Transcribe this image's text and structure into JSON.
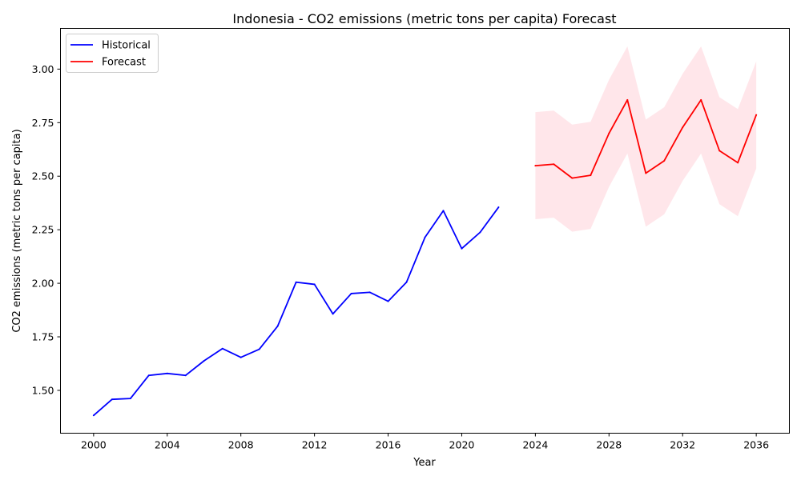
{
  "chart_data": {
    "type": "line",
    "title": "Indonesia - CO2 emissions (metric tons per capita) Forecast",
    "xlabel": "Year",
    "ylabel": "CO2 emissions (metric tons per capita)",
    "xlim": [
      1998.2,
      2037.8
    ],
    "ylim": [
      1.3,
      3.19
    ],
    "x_ticks": [
      2000,
      2004,
      2008,
      2012,
      2016,
      2020,
      2024,
      2028,
      2032,
      2036
    ],
    "y_ticks": [
      1.5,
      1.75,
      2.0,
      2.25,
      2.5,
      2.75,
      3.0
    ],
    "y_tick_labels": [
      "1.50",
      "1.75",
      "2.00",
      "2.25",
      "2.50",
      "2.75",
      "3.00"
    ],
    "legend_position": "top-left",
    "grid": false,
    "series": [
      {
        "name": "Historical",
        "color": "#0000ff",
        "x": [
          2000,
          2001,
          2002,
          2003,
          2004,
          2005,
          2006,
          2007,
          2008,
          2009,
          2010,
          2011,
          2012,
          2013,
          2014,
          2015,
          2016,
          2017,
          2018,
          2019,
          2020,
          2021,
          2022
        ],
        "y": [
          1.383,
          1.458,
          1.462,
          1.57,
          1.579,
          1.57,
          1.638,
          1.695,
          1.654,
          1.692,
          1.8,
          2.005,
          1.995,
          1.857,
          1.952,
          1.958,
          1.916,
          2.005,
          2.214,
          2.339,
          2.162,
          2.238,
          2.355
        ]
      },
      {
        "name": "Forecast",
        "color": "#ff0000",
        "x": [
          2024,
          2025,
          2026,
          2027,
          2028,
          2029,
          2030,
          2031,
          2032,
          2033,
          2034,
          2035,
          2036
        ],
        "y": [
          2.549,
          2.556,
          2.491,
          2.504,
          2.7,
          2.856,
          2.514,
          2.572,
          2.728,
          2.856,
          2.619,
          2.563,
          2.786
        ],
        "lower": [
          2.299,
          2.306,
          2.241,
          2.254,
          2.45,
          2.606,
          2.264,
          2.322,
          2.478,
          2.606,
          2.369,
          2.313,
          2.536
        ],
        "upper": [
          2.799,
          2.806,
          2.741,
          2.754,
          2.95,
          3.106,
          2.764,
          2.822,
          2.978,
          3.106,
          2.869,
          2.813,
          3.036
        ],
        "band_color": "#ffc0cb"
      }
    ]
  }
}
